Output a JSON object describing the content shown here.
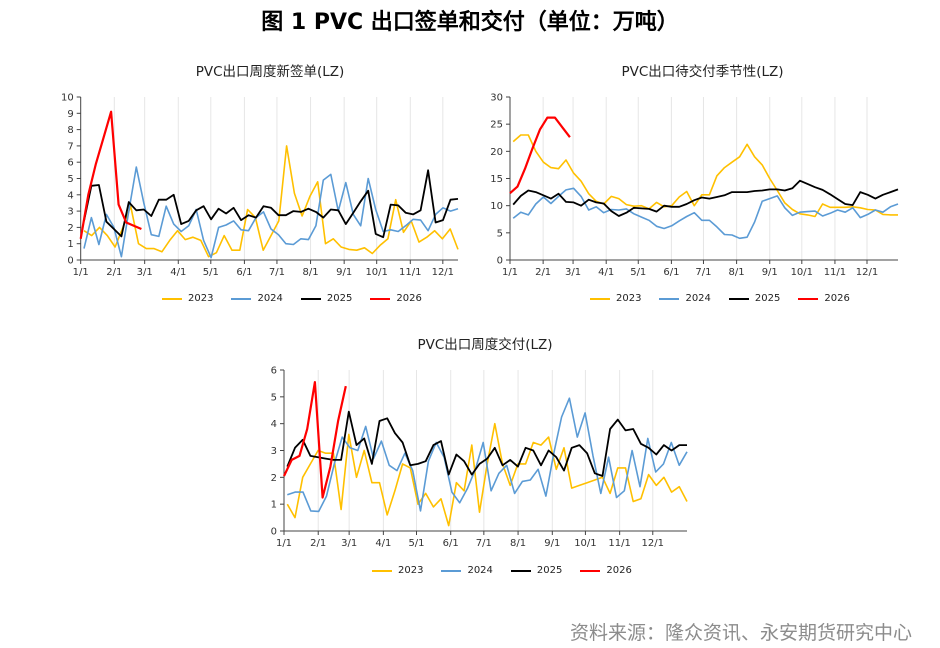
{
  "title": "图 1 PVC 出口签单和交付（单位：万吨）",
  "source": "资料来源：隆众资讯、永安期货研究中心",
  "colors": {
    "2023": "#FFC000",
    "2024": "#5B9BD5",
    "2025": "#000000",
    "2026": "#FF0000"
  },
  "chart_data": [
    {
      "type": "line",
      "title": "PVC出口周度新签单(LZ)",
      "x_frequency": "weekly",
      "x_ticks": [
        "1/1",
        "2/1",
        "3/1",
        "4/1",
        "5/1",
        "6/1",
        "7/1",
        "8/1",
        "9/1",
        "10/1",
        "11/1",
        "12/1"
      ],
      "ylim": [
        0,
        10
      ],
      "y_ticks": [
        "0",
        "1",
        "2",
        "3",
        "4",
        "5",
        "6",
        "7",
        "8",
        "9",
        "10"
      ],
      "grid": "vertical",
      "legend": "bottom",
      "series": [
        {
          "name": "2023",
          "values": [
            1.8,
            1.5,
            2.0,
            1.5,
            0.8,
            2.0,
            3.3,
            1.0,
            0.7,
            0.7,
            0.5,
            1.2,
            1.8,
            1.25,
            1.4,
            1.2,
            0.2,
            0.45,
            1.5,
            0.6,
            0.6,
            3.1,
            2.6,
            0.6,
            1.5,
            2.4,
            7.0,
            4.1,
            2.7,
            3.9,
            4.8,
            1.0,
            1.3,
            0.8,
            0.65,
            0.6,
            0.75,
            0.4,
            0.9,
            1.3,
            3.7,
            1.7,
            2.4,
            1.1,
            1.4,
            1.8,
            1.3,
            1.9,
            0.65
          ]
        },
        {
          "name": "2024",
          "values": [
            0.7,
            2.6,
            0.95,
            2.8,
            2.0,
            0.2,
            3.0,
            5.7,
            3.5,
            1.55,
            1.45,
            3.3,
            2.2,
            1.75,
            2.1,
            3.1,
            1.2,
            0.15,
            2.0,
            2.15,
            2.4,
            1.85,
            1.8,
            2.6,
            2.95,
            1.9,
            1.55,
            1.0,
            0.95,
            1.3,
            1.25,
            2.1,
            4.9,
            5.25,
            3.0,
            4.75,
            2.8,
            2.1,
            5.0,
            3.1,
            1.75,
            1.85,
            1.75,
            2.1,
            2.5,
            2.45,
            1.8,
            2.8,
            3.2,
            3.0,
            3.15
          ]
        },
        {
          "name": "2025",
          "values": [
            2.4,
            4.55,
            4.6,
            2.35,
            1.9,
            1.45,
            3.55,
            3.05,
            3.1,
            2.7,
            3.7,
            3.7,
            4.0,
            2.2,
            2.4,
            3.05,
            3.3,
            2.5,
            3.15,
            2.85,
            3.2,
            2.45,
            2.75,
            2.6,
            3.3,
            3.2,
            2.75,
            2.75,
            3.0,
            2.95,
            3.15,
            2.95,
            2.6,
            3.1,
            3.05,
            2.2,
            2.9,
            3.6,
            4.25,
            1.6,
            1.4,
            3.4,
            3.35,
            2.9,
            2.8,
            3.05,
            5.5,
            2.3,
            2.45,
            3.7,
            3.75
          ]
        },
        {
          "name": "2026",
          "values": [
            1.3,
            4.0,
            5.9,
            7.5,
            9.1,
            3.4,
            2.3,
            2.1,
            1.9
          ]
        }
      ]
    },
    {
      "type": "line",
      "title": "PVC出口待交付季节性(LZ)",
      "x_frequency": "weekly",
      "x_ticks": [
        "1/1",
        "2/1",
        "3/1",
        "4/1",
        "5/1",
        "6/1",
        "7/1",
        "8/1",
        "9/1",
        "10/1",
        "11/1",
        "12/1"
      ],
      "ylim": [
        0,
        30
      ],
      "y_ticks": [
        "0",
        "5",
        "10",
        "15",
        "20",
        "25",
        "30"
      ],
      "grid": "vertical",
      "legend": "bottom",
      "series": [
        {
          "name": "2023",
          "values": [
            21.8,
            23,
            23,
            20,
            18,
            17,
            16.8,
            18.4,
            16,
            14.5,
            12.2,
            10.8,
            10.3,
            11.7,
            11.3,
            10.2,
            9.9,
            10,
            9.4,
            10.6,
            9.8,
            10,
            11.6,
            12.6,
            10,
            12,
            12,
            15.5,
            17,
            18,
            19,
            21.3,
            19,
            17.5,
            15,
            12.8,
            10.5,
            9.3,
            8.5,
            8.3,
            8,
            10.3,
            9.7,
            9.7,
            9.7,
            9.8,
            9.6,
            9.3,
            9.2,
            8.4,
            8.3,
            8.3
          ]
        },
        {
          "name": "2024",
          "values": [
            7.7,
            8.8,
            8.3,
            10.3,
            11.6,
            10.4,
            11.7,
            12.9,
            13.2,
            11.7,
            9.2,
            9.8,
            8.7,
            9.3,
            9.2,
            9.4,
            8.5,
            7.9,
            7.3,
            6.2,
            5.8,
            6.3,
            7.2,
            8.0,
            8.7,
            7.3,
            7.3,
            6.1,
            4.7,
            4.6,
            4.0,
            4.2,
            7.0,
            10.8,
            11.3,
            11.8,
            9.6,
            8.2,
            8.8,
            8.9,
            9.0,
            8.1,
            8.6,
            9.2,
            8.8,
            9.6,
            7.8,
            8.4,
            9.2,
            8.8,
            9.8,
            10.3
          ]
        },
        {
          "name": "2025",
          "values": [
            10.2,
            11.8,
            12.8,
            12.5,
            11.9,
            11.3,
            12.2,
            10.7,
            10.6,
            10,
            11.1,
            10.6,
            10.4,
            9.0,
            8.1,
            8.7,
            9.6,
            9.5,
            9.4,
            8.9,
            10,
            9.8,
            9.8,
            10.3,
            11,
            11.5,
            11.3,
            11.6,
            11.9,
            12.5,
            12.5,
            12.5,
            12.7,
            12.8,
            13.0,
            13.0,
            12.8,
            13.2,
            14.6,
            14.0,
            13.4,
            12.9,
            12.1,
            11.2,
            10.3,
            10.1,
            12.5,
            12.0,
            11.3,
            12.0,
            12.5,
            13.0
          ]
        },
        {
          "name": "2026",
          "values": [
            12.3,
            13.5,
            16.8,
            20.5,
            24,
            26.2,
            26.2,
            24.4,
            22.6
          ]
        }
      ]
    },
    {
      "type": "line",
      "title": "PVC出口周度交付(LZ)",
      "x_frequency": "weekly",
      "x_ticks": [
        "1/1",
        "2/1",
        "3/1",
        "4/1",
        "5/1",
        "6/1",
        "7/1",
        "8/1",
        "9/1",
        "10/1",
        "11/1",
        "12/1"
      ],
      "ylim": [
        0,
        6
      ],
      "y_ticks": [
        "0",
        "1",
        "2",
        "3",
        "4",
        "5",
        "6"
      ],
      "grid": "vertical",
      "legend": "bottom",
      "series": [
        {
          "name": "2023",
          "values": [
            1.0,
            0.5,
            2.0,
            2.5,
            3.0,
            2.9,
            2.9,
            0.8,
            3.6,
            2.0,
            3.0,
            1.8,
            1.8,
            0.6,
            1.5,
            2.5,
            2.35,
            1.0,
            1.4,
            0.9,
            1.2,
            0.2,
            1.8,
            1.5,
            3.2,
            0.7,
            2.5,
            4.0,
            2.5,
            1.7,
            2.5,
            2.5,
            3.3,
            3.2,
            3.5,
            2.3,
            3.1,
            1.6,
            1.7,
            1.8,
            1.9,
            2.0,
            1.4,
            2.35,
            2.35,
            1.1,
            1.2,
            2.1,
            1.7,
            2.0,
            1.45,
            1.65,
            1.1
          ]
        },
        {
          "name": "2024",
          "values": [
            1.35,
            1.45,
            1.45,
            0.75,
            0.73,
            1.3,
            2.5,
            3.5,
            3.1,
            3.0,
            3.9,
            2.7,
            3.35,
            2.45,
            2.25,
            2.9,
            2.25,
            0.75,
            2.6,
            3.3,
            2.75,
            1.45,
            1.05,
            1.6,
            2.3,
            3.3,
            1.5,
            2.15,
            2.45,
            1.4,
            1.85,
            1.9,
            2.3,
            1.3,
            2.9,
            4.25,
            4.95,
            3.5,
            4.4,
            2.8,
            1.4,
            2.75,
            1.25,
            1.5,
            3.0,
            1.65,
            3.45,
            2.2,
            2.5,
            3.3,
            2.45,
            2.95
          ]
        },
        {
          "name": "2025",
          "values": [
            2.4,
            3.1,
            3.4,
            2.8,
            2.75,
            2.7,
            2.65,
            2.65,
            4.45,
            3.2,
            3.45,
            2.5,
            4.1,
            4.2,
            3.65,
            3.3,
            2.45,
            2.5,
            2.6,
            3.2,
            3.35,
            2.1,
            2.85,
            2.6,
            2.1,
            2.5,
            2.7,
            3.1,
            2.45,
            2.65,
            2.4,
            3.1,
            3.0,
            2.45,
            3.0,
            2.75,
            2.25,
            3.1,
            3.2,
            2.9,
            2.15,
            2.05,
            3.8,
            4.15,
            3.75,
            3.8,
            3.25,
            3.1,
            2.85,
            3.2,
            3.0,
            3.2,
            3.2
          ]
        },
        {
          "name": "2026",
          "values": [
            2.05,
            2.65,
            2.8,
            3.8,
            5.55,
            1.25,
            2.4,
            4.1,
            5.4
          ]
        }
      ]
    }
  ]
}
